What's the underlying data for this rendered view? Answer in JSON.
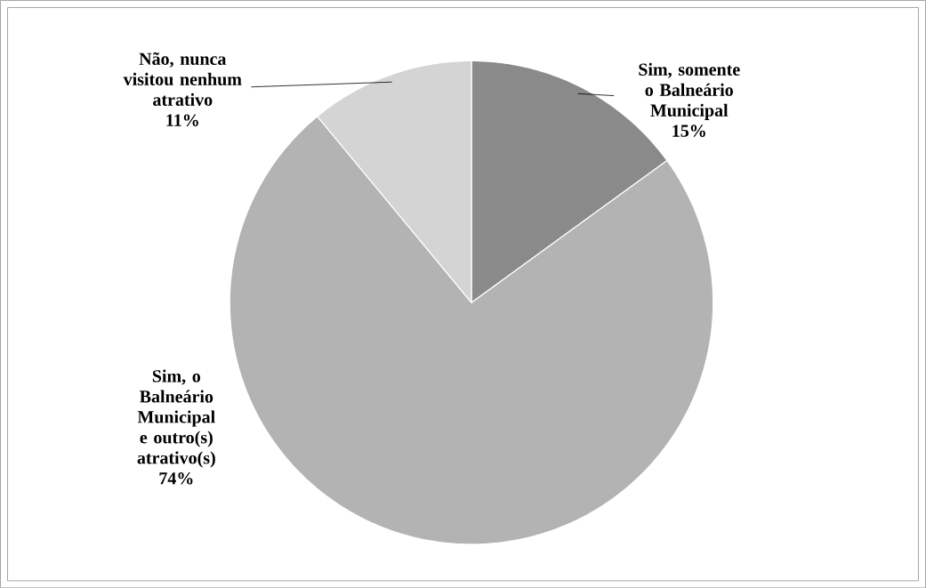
{
  "chart_data": {
    "type": "pie",
    "categories": [
      "Sim, somente o Balneário Municipal",
      "Sim, o Balneário Municipal e outro(s) atrativo(s)",
      "Não, nunca visitou nenhum atrativo"
    ],
    "values": [
      15,
      74,
      11
    ],
    "value_labels": [
      "15%",
      "74%",
      "11%"
    ],
    "colors": [
      "#8a8a8a",
      "#b3b3b3",
      "#d4d4d4"
    ]
  }
}
